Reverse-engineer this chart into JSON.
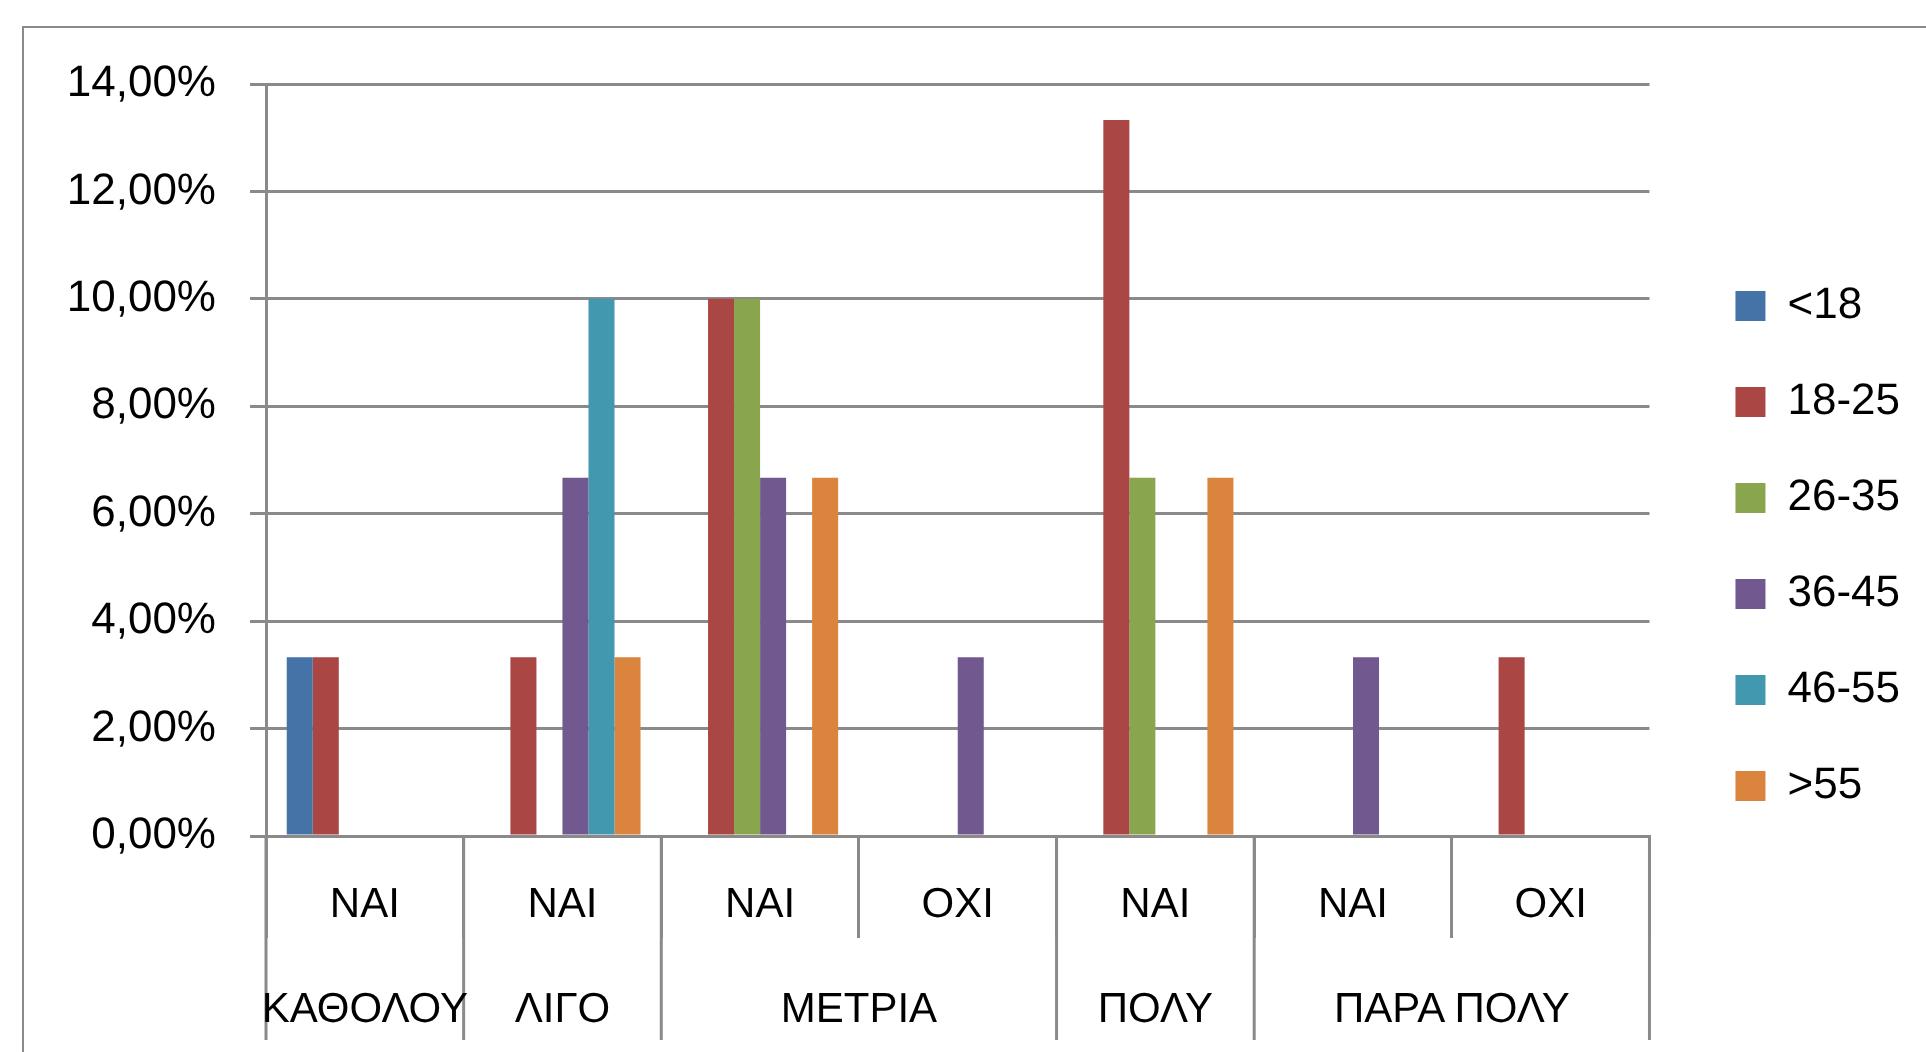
{
  "chart_data": {
    "type": "bar",
    "categories": [
      "ΝΑΙ",
      "ΝΑΙ",
      "ΝΑΙ",
      "ΟΧΙ",
      "ΝΑΙ",
      "ΝΑΙ",
      "ΟΧΙ"
    ],
    "annotations": [
      "ΚΑΘΟΛΟΥ",
      "ΛΙΓΟ",
      "ΜΕΤΡΙΑ",
      "ΠΟΛΥ",
      "ΠΑΡΑ ΠΟΛΥ"
    ],
    "series": [
      {
        "name": "<18",
        "color": "#4572a7",
        "values": [
          3.33,
          null,
          null,
          null,
          null,
          null,
          null
        ]
      },
      {
        "name": "18-25",
        "color": "#aa4643",
        "values": [
          3.33,
          3.33,
          10,
          null,
          13.33,
          null,
          3.33
        ]
      },
      {
        "name": "26-35",
        "color": "#89a54e",
        "values": [
          null,
          null,
          10,
          null,
          6.67,
          null,
          null
        ]
      },
      {
        "name": "36-45",
        "color": "#71588f",
        "values": [
          null,
          6.67,
          6.67,
          3.33,
          null,
          3.33,
          null
        ]
      },
      {
        "name": "46-55",
        "color": "#4198af",
        "values": [
          null,
          10,
          null,
          null,
          null,
          null,
          null
        ]
      },
      {
        "name": ">55",
        "color": "#db843d",
        "values": [
          null,
          3.33,
          6.67,
          null,
          6.67,
          null,
          null
        ]
      }
    ],
    "ylim": [
      0,
      14
    ],
    "yticks": [
      {
        "value": 0,
        "label": "0,00%"
      },
      {
        "value": 2,
        "label": "2,00%"
      },
      {
        "value": 4,
        "label": "4,00%"
      },
      {
        "value": 6,
        "label": "6,00%"
      },
      {
        "value": 8,
        "label": "8,00%"
      },
      {
        "value": 10,
        "label": "10,00%"
      },
      {
        "value": 12,
        "label": "12,00%"
      },
      {
        "value": 14,
        "label": "14,00%"
      }
    ],
    "grid": "y",
    "legend": "right"
  }
}
